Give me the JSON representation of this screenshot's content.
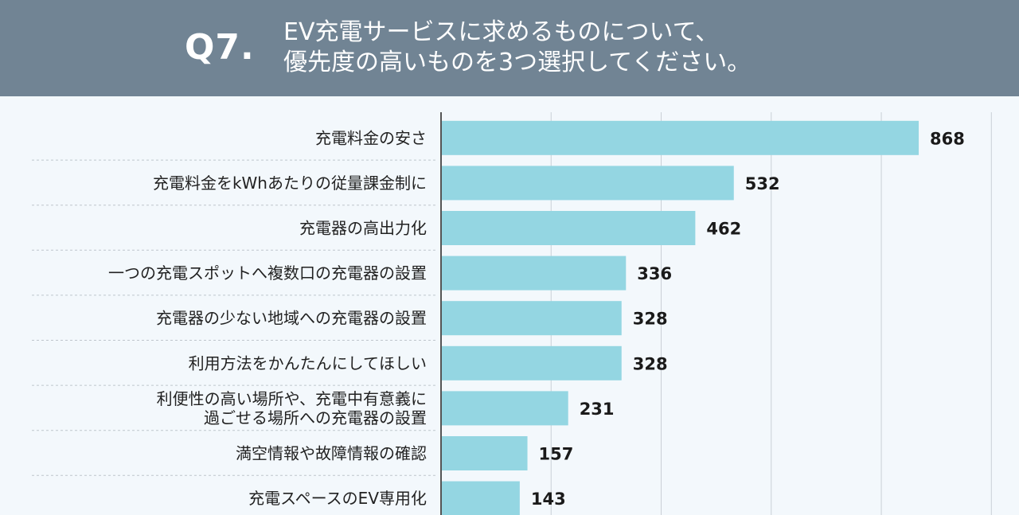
{
  "question": {
    "number": "Q7.",
    "text": "EV充電サービスに求めるものについて、\n優先度の高いものを3つ選択してください。"
  },
  "colors": {
    "header_bg": "#718494",
    "bar": "#94d6e2",
    "axis": "#555555",
    "grid": "#c9d0d6",
    "separator": "#bfc6cc"
  },
  "chart_data": {
    "type": "bar",
    "orientation": "horizontal",
    "title": "",
    "xlabel": "",
    "ylabel": "",
    "xlim": [
      0,
      1000
    ],
    "grid": true,
    "categories": [
      [
        "充電料金の安さ"
      ],
      [
        "充電料金をkWhあたりの従量課金制に"
      ],
      [
        "充電器の高出力化"
      ],
      [
        "一つの充電スポットへ複数口の充電器の設置"
      ],
      [
        "充電器の少ない地域への充電器の設置"
      ],
      [
        "利用方法をかんたんにしてほしい"
      ],
      [
        "利便性の高い場所や、充電中有意義に",
        "過ごせる場所への充電器の設置"
      ],
      [
        "満空情報や故障情報の確認"
      ],
      [
        "充電スペースのEV専用化"
      ]
    ],
    "values": [
      868,
      532,
      462,
      336,
      328,
      328,
      231,
      157,
      143
    ]
  }
}
